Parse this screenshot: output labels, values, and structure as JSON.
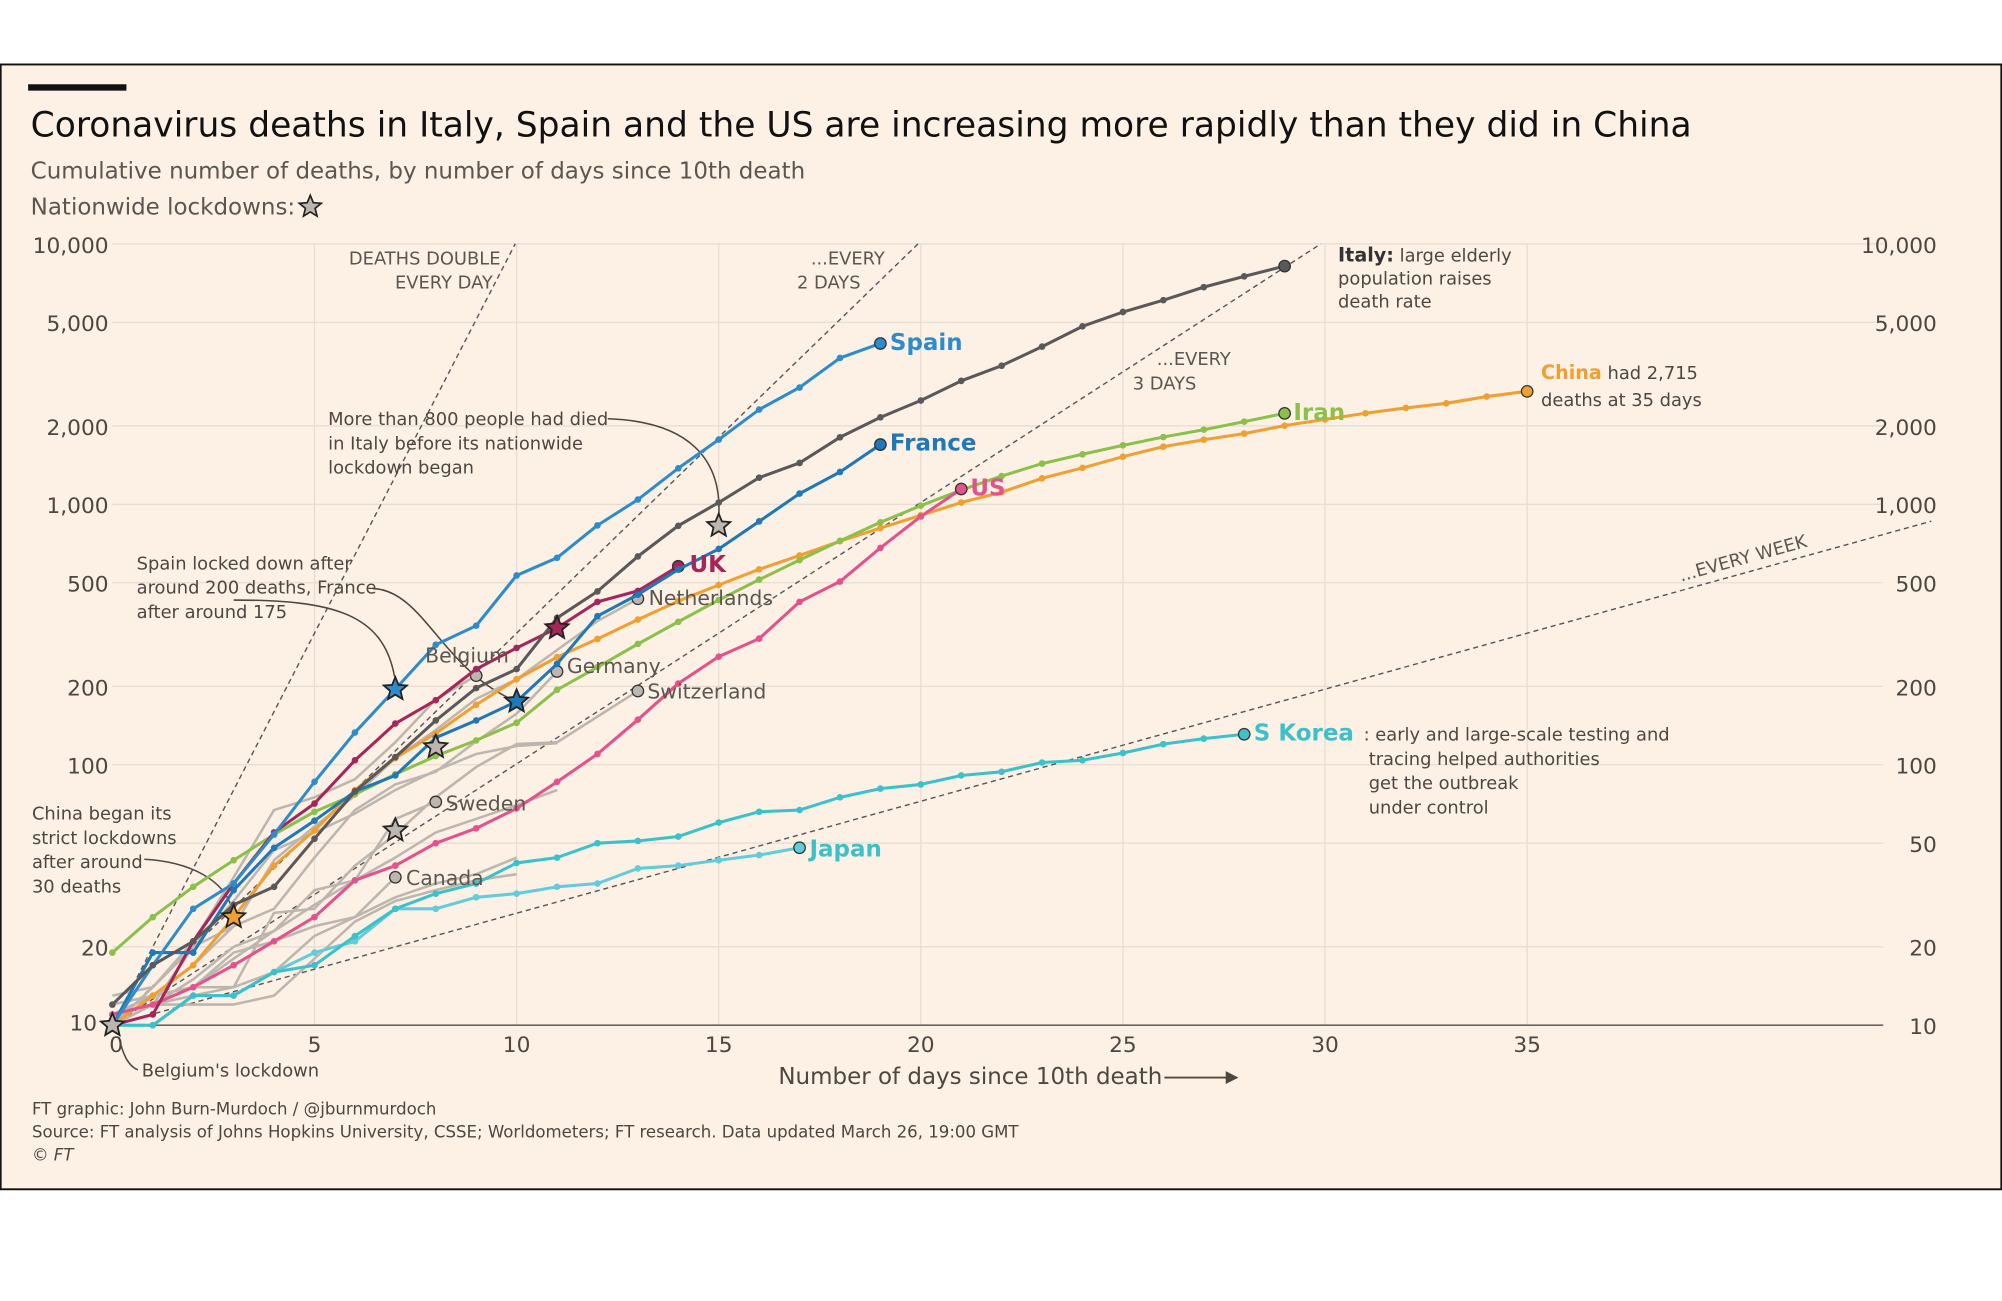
{
  "header": {
    "title": "Coronavirus deaths in Italy, Spain and the US are increasing more rapidly than they did in China",
    "subtitle": "Cumulative number of deaths, by number of days since 10th death",
    "lockdown_legend": "Nationwide lockdowns:",
    "lockdown_icon": "star-icon"
  },
  "colors": {
    "background": "#fdf1e6",
    "grid": "#e6dcd2",
    "italy": "#5a5858",
    "spain": "#2f8ccb",
    "france": "#1f78b8",
    "uk": "#a52659",
    "us": "#e4528b",
    "iran": "#8dbf4b",
    "china": "#f0a032",
    "skorea": "#3cc1cb",
    "japan": "#62ccdb",
    "other": "#bdb6ae"
  },
  "chart_data": {
    "type": "line",
    "title": "Coronavirus deaths in Italy, Spain and the US are increasing more rapidly than they did in China",
    "subtitle": "Cumulative number of deaths, by number of days since 10th death",
    "xlabel": "Number of days since 10th death",
    "ylabel": "",
    "xlim": [
      0,
      44
    ],
    "ylim": [
      10,
      10000
    ],
    "yscale": "log",
    "grid": true,
    "x_ticks": [
      0,
      5,
      10,
      15,
      20,
      25,
      30,
      35
    ],
    "y_ticks": [
      10,
      20,
      50,
      100,
      200,
      500,
      1000,
      2000,
      5000,
      10000
    ],
    "y_tick_labels": [
      "10",
      "20",
      "50",
      "100",
      "200",
      "500",
      "1,000",
      "2,000",
      "5,000",
      "10,000"
    ],
    "series": [
      {
        "key": "other1",
        "name": "",
        "color": "other",
        "values": [
          13,
          14,
          20,
          30,
          47,
          55,
          65,
          80,
          95,
          110,
          118,
          121
        ]
      },
      {
        "key": "other2",
        "name": "",
        "color": "other",
        "values": [
          10,
          12,
          13,
          14,
          16,
          22,
          26,
          31,
          35,
          38,
          44
        ]
      },
      {
        "key": "other3",
        "name": "",
        "color": "other",
        "values": [
          11,
          13,
          14,
          18,
          23,
          29,
          36,
          44,
          55,
          62,
          70,
          80
        ]
      },
      {
        "key": "other4",
        "name": "",
        "color": "other",
        "values": [
          11,
          12,
          12,
          12,
          13,
          18,
          25,
          30,
          33,
          36,
          38
        ]
      },
      {
        "key": "netherlands",
        "name": "Netherlands",
        "color": "other",
        "values": [
          10,
          12,
          20,
          24,
          43,
          58,
          76,
          106,
          136,
          179,
          213,
          276,
          356,
          434
        ]
      },
      {
        "key": "germany",
        "name": "Germany",
        "color": "other",
        "values": [
          10,
          13,
          17,
          24,
          28,
          44,
          67,
          84,
          94,
          123,
          157,
          228
        ]
      },
      {
        "key": "belgium",
        "name": "Belgium",
        "color": "other",
        "values": [
          10,
          14,
          21,
          37,
          67,
          75,
          88,
          122,
          178,
          220
        ]
      },
      {
        "key": "switzerland",
        "name": "Switzerland",
        "color": "other",
        "values": [
          11,
          13,
          14,
          14,
          27,
          28,
          41,
          54,
          75,
          98,
          120,
          122,
          153,
          192
        ]
      },
      {
        "key": "sweden",
        "name": "Sweden",
        "color": "other",
        "values": [
          10,
          12,
          15,
          20,
          23,
          33,
          36,
          62,
          72
        ]
      },
      {
        "key": "canada",
        "name": "Canada",
        "color": "other",
        "values": [
          12,
          13,
          14,
          19,
          21,
          24,
          26,
          37
        ]
      },
      {
        "key": "japan",
        "name": "Japan",
        "color": "japan",
        "values": [
          10,
          10,
          13,
          13,
          16,
          19,
          21,
          28,
          28,
          31,
          32,
          34,
          35,
          40,
          41,
          43,
          45,
          48
        ]
      },
      {
        "key": "skorea",
        "name": "S Korea",
        "color": "skorea",
        "values": [
          10,
          10,
          13,
          13,
          16,
          17,
          22,
          28,
          32,
          35,
          42,
          44,
          50,
          51,
          53,
          60,
          66,
          67,
          75,
          81,
          84,
          91,
          94,
          102,
          104,
          111,
          120,
          126,
          131
        ]
      },
      {
        "key": "china",
        "name": "China",
        "color": "china",
        "values": [
          10,
          13,
          17,
          26,
          41,
          56,
          80,
          106,
          132,
          170,
          213,
          259,
          304,
          361,
          425,
          490,
          563,
          636,
          722,
          811,
          908,
          1016,
          1113,
          1259,
          1380,
          1523,
          1665,
          1770,
          1868,
          2004,
          2118,
          2236,
          2345,
          2442,
          2592,
          2715
        ]
      },
      {
        "key": "iran",
        "name": "Iran",
        "color": "iran",
        "values": [
          19,
          26,
          34,
          43,
          54,
          66,
          77,
          92,
          108,
          124,
          145,
          194,
          237,
          291,
          354,
          429,
          514,
          611,
          724,
          853,
          988,
          1135,
          1284,
          1433,
          1556,
          1685,
          1812,
          1934,
          2077,
          2234
        ]
      },
      {
        "key": "us",
        "name": "US",
        "color": "us",
        "values": [
          11,
          12,
          14,
          17,
          21,
          26,
          36,
          41,
          50,
          57,
          68,
          86,
          110,
          149,
          205,
          260,
          305,
          422,
          505,
          680,
          898,
          1145
        ]
      },
      {
        "key": "uk",
        "name": "UK",
        "color": "uk",
        "values": [
          10,
          11,
          21,
          35,
          55,
          71,
          104,
          144,
          177,
          233,
          281,
          335,
          422,
          465,
          578
        ]
      },
      {
        "key": "france",
        "name": "France",
        "color": "france",
        "values": [
          10,
          19,
          19,
          33,
          48,
          61,
          79,
          91,
          127,
          148,
          175,
          244,
          372,
          450,
          562,
          674,
          860,
          1100,
          1331,
          1696
        ]
      },
      {
        "key": "spain",
        "name": "Spain",
        "color": "spain",
        "values": [
          10,
          17,
          28,
          35,
          54,
          86,
          133,
          195,
          289,
          342,
          533,
          623,
          830,
          1043,
          1375,
          1772,
          2311,
          2808,
          3647,
          4145
        ]
      },
      {
        "key": "italy",
        "name": "Italy",
        "color": "italy",
        "values": [
          12,
          17,
          21,
          29,
          34,
          52,
          79,
          107,
          148,
          197,
          233,
          366,
          463,
          631,
          827,
          1016,
          1266,
          1441,
          1809,
          2158,
          2503,
          2978,
          3405,
          4032,
          4825,
          5476,
          6077,
          6820,
          7503,
          8215
        ]
      }
    ],
    "lockdown_markers": [
      {
        "country": "Italy",
        "day": 15,
        "deaths": 827,
        "color": "other"
      },
      {
        "country": "Spain",
        "day": 7,
        "deaths": 195,
        "color": "spain"
      },
      {
        "country": "France",
        "day": 10,
        "deaths": 175,
        "color": "france"
      },
      {
        "country": "UK",
        "day": 11,
        "deaths": 335,
        "color": "uk"
      },
      {
        "country": "China",
        "day": 3,
        "deaths": 26,
        "color": "china"
      },
      {
        "country": "Belgium",
        "day": 0,
        "deaths": 10,
        "color": "other"
      },
      {
        "country": "",
        "day": 7,
        "deaths": 56,
        "color": "other"
      },
      {
        "country": "",
        "day": 8,
        "deaths": 117,
        "color": "other"
      }
    ],
    "doubling_guides": [
      {
        "label": [
          "DEATHS DOUBLE",
          "EVERY DAY"
        ],
        "days": 1
      },
      {
        "label": [
          "...EVERY",
          "2 DAYS"
        ],
        "days": 2
      },
      {
        "label": [
          "...EVERY",
          "3 DAYS"
        ],
        "days": 3
      },
      {
        "label": [
          "...EVERY WEEK"
        ],
        "days": 7
      }
    ],
    "annotations": {
      "italy": {
        "bold": "Italy:",
        "rest": "large elderly",
        "lines": [
          "population raises",
          "death rate"
        ]
      },
      "china": {
        "bold": "China",
        "rest": "had 2,715",
        "lines": [
          "deaths at 35 days"
        ]
      },
      "skorea": {
        "rest": ": early and large-scale testing and",
        "lines": [
          "tracing helped authorities",
          "get the outbreak",
          "under control"
        ]
      },
      "italy_lockdown": [
        "More than 800 people had died",
        "in Italy before its nationwide",
        "lockdown began"
      ],
      "spain_france": [
        "Spain locked down after",
        "around 200 deaths, France",
        "after around 175"
      ],
      "china_lockdown": [
        "China began its",
        "strict lockdowns",
        "after around",
        "30 deaths"
      ],
      "belgium": "Belgium's lockdown"
    }
  },
  "footer": {
    "credit": "FT graphic: John Burn-Murdoch / @jburnmurdoch",
    "source": "Source: FT analysis of Johns Hopkins University, CSSE; Worldometers; FT research. Data updated March 26, 19:00 GMT",
    "copyright": "© FT"
  }
}
